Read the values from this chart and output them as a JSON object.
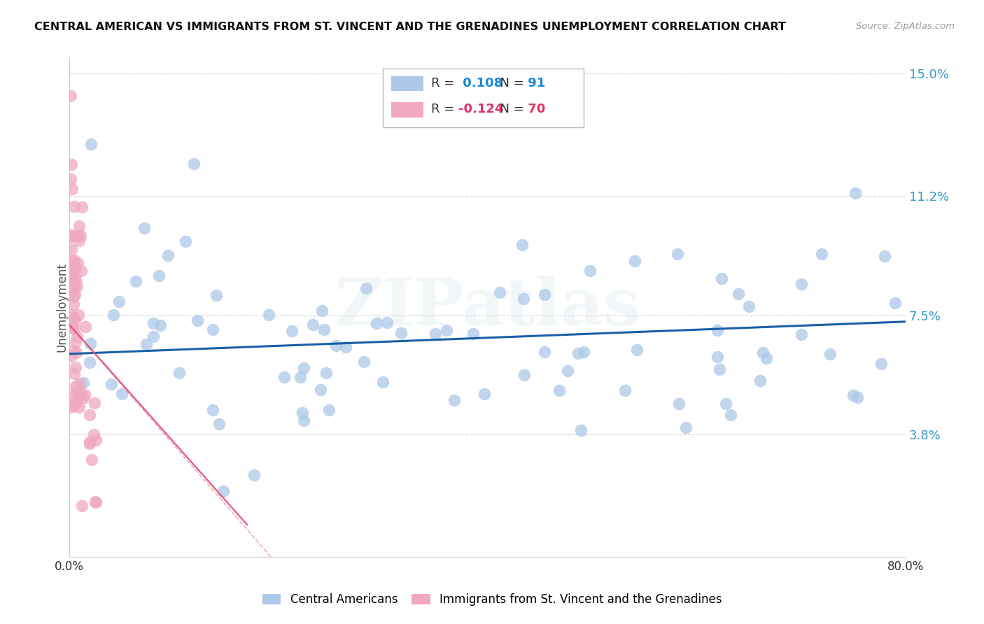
{
  "title": "CENTRAL AMERICAN VS IMMIGRANTS FROM ST. VINCENT AND THE GRENADINES UNEMPLOYMENT CORRELATION CHART",
  "source": "Source: ZipAtlas.com",
  "ylabel": "Unemployment",
  "xlim": [
    0.0,
    0.8
  ],
  "ylim": [
    0.0,
    0.155
  ],
  "yticks": [
    0.038,
    0.075,
    0.112,
    0.15
  ],
  "ytick_labels": [
    "3.8%",
    "7.5%",
    "11.2%",
    "15.0%"
  ],
  "xticks": [
    0.0,
    0.1,
    0.2,
    0.3,
    0.4,
    0.5,
    0.6,
    0.7,
    0.8
  ],
  "xtick_labels": [
    "0.0%",
    "",
    "",
    "",
    "",
    "",
    "",
    "",
    "80.0%"
  ],
  "blue_R": 0.108,
  "blue_N": 91,
  "pink_R": -0.124,
  "pink_N": 70,
  "blue_color": "#adc8e8",
  "pink_color": "#f0a8c0",
  "blue_line_color": "#1a5fa8",
  "pink_line_color": "#e05878",
  "watermark": "ZIPatlas",
  "background_color": "#ffffff",
  "grid_color": "#cccccc"
}
